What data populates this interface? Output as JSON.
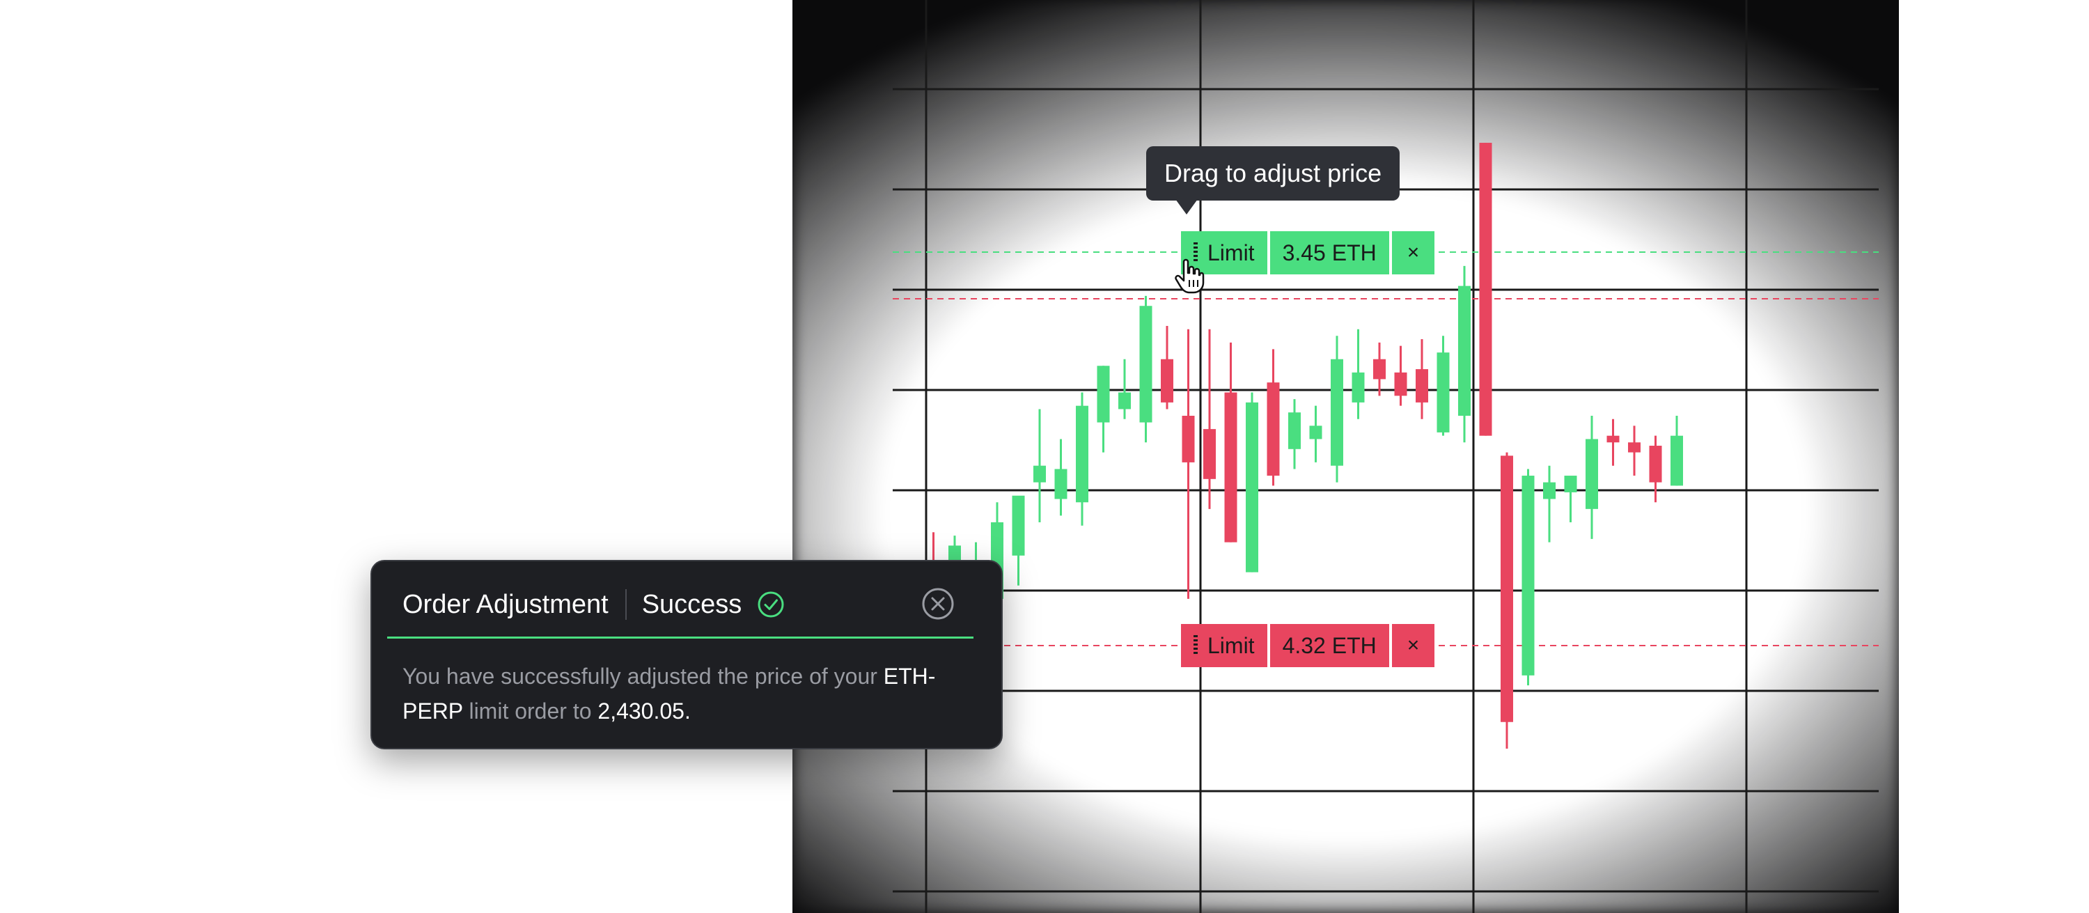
{
  "tooltip": {
    "text": "Drag to adjust price"
  },
  "orders": [
    {
      "type": "Limit",
      "amount": "3.45 ETH",
      "close": "×",
      "side": "buy",
      "color": "#4ade80"
    },
    {
      "type": "Limit",
      "amount": "4.32 ETH",
      "close": "×",
      "side": "sell",
      "color": "#e8455f"
    }
  ],
  "toast": {
    "title": "Order Adjustment",
    "status": "Success",
    "message_prefix": "You have successfully adjusted the price of your",
    "symbol": "ETH-PERP",
    "message_middle": "limit order to",
    "price": "2,430.05."
  },
  "colors": {
    "up": "#4ade80",
    "down": "#e8455f",
    "panel": "#0b0b0c",
    "toast_bg": "#1e1f23"
  },
  "icons": {
    "check": "check-circle-icon",
    "close": "close-circle-icon",
    "cursor": "hand-cursor-icon"
  },
  "chart_data": {
    "type": "candlestick",
    "series": [
      {
        "o": 0.2,
        "h": 0.5,
        "l": 0.08,
        "c": 0.35
      },
      {
        "o": 0.35,
        "h": 0.65,
        "l": 0.1,
        "c": 0.3
      },
      {
        "o": 0.52,
        "h": 0.64,
        "l": 0.44,
        "c": 0.61
      },
      {
        "o": 0.51,
        "h": 0.62,
        "l": 0.44,
        "c": 0.56
      },
      {
        "o": 0.45,
        "h": 0.74,
        "l": 0.4,
        "c": 0.68
      },
      {
        "o": 0.58,
        "h": 0.74,
        "l": 0.49,
        "c": 0.76
      },
      {
        "o": 0.8,
        "h": 1.02,
        "l": 0.68,
        "c": 0.85
      },
      {
        "o": 0.75,
        "h": 0.93,
        "l": 0.7,
        "c": 0.84
      },
      {
        "o": 0.74,
        "h": 1.07,
        "l": 0.67,
        "c": 1.03
      },
      {
        "o": 0.98,
        "h": 1.15,
        "l": 0.89,
        "c": 1.15
      },
      {
        "o": 1.02,
        "h": 1.17,
        "l": 0.99,
        "c": 1.07
      },
      {
        "o": 0.98,
        "h": 1.36,
        "l": 0.92,
        "c": 1.33
      },
      {
        "o": 1.17,
        "h": 1.27,
        "l": 1.02,
        "c": 1.04
      },
      {
        "o": 1.0,
        "h": 1.26,
        "l": 0.45,
        "c": 0.86
      },
      {
        "o": 0.96,
        "h": 1.26,
        "l": 0.72,
        "c": 0.81
      },
      {
        "o": 1.07,
        "h": 1.22,
        "l": 0.62,
        "c": 0.62
      },
      {
        "o": 0.53,
        "h": 1.07,
        "l": 0.53,
        "c": 1.04
      },
      {
        "o": 1.1,
        "h": 1.2,
        "l": 0.79,
        "c": 0.82
      },
      {
        "o": 0.9,
        "h": 1.05,
        "l": 0.84,
        "c": 1.01
      },
      {
        "o": 0.93,
        "h": 1.03,
        "l": 0.86,
        "c": 0.97
      },
      {
        "o": 0.85,
        "h": 1.24,
        "l": 0.8,
        "c": 1.17
      },
      {
        "o": 1.04,
        "h": 1.26,
        "l": 0.99,
        "c": 1.13
      },
      {
        "o": 1.17,
        "h": 1.22,
        "l": 1.06,
        "c": 1.11
      },
      {
        "o": 1.13,
        "h": 1.21,
        "l": 1.03,
        "c": 1.06
      },
      {
        "o": 1.14,
        "h": 1.23,
        "l": 0.99,
        "c": 1.04
      },
      {
        "o": 0.95,
        "h": 1.24,
        "l": 0.94,
        "c": 1.19
      },
      {
        "o": 1.0,
        "h": 1.45,
        "l": 0.92,
        "c": 1.39
      },
      {
        "o": 1.82,
        "h": 1.82,
        "l": 0.94,
        "c": 0.94
      },
      {
        "o": 0.88,
        "h": 0.89,
        "l": 0.0,
        "c": 0.08
      },
      {
        "o": 0.22,
        "h": 0.84,
        "l": 0.19,
        "c": 0.82
      },
      {
        "o": 0.75,
        "h": 0.85,
        "l": 0.62,
        "c": 0.8
      },
      {
        "o": 0.77,
        "h": 0.81,
        "l": 0.68,
        "c": 0.82
      },
      {
        "o": 0.72,
        "h": 1.0,
        "l": 0.63,
        "c": 0.93
      },
      {
        "o": 0.94,
        "h": 0.99,
        "l": 0.85,
        "c": 0.92
      },
      {
        "o": 0.92,
        "h": 0.97,
        "l": 0.82,
        "c": 0.89
      },
      {
        "o": 0.91,
        "h": 0.94,
        "l": 0.74,
        "c": 0.8
      },
      {
        "o": 0.79,
        "h": 1.0,
        "l": 0.79,
        "c": 0.94
      }
    ],
    "grid": true,
    "title": "",
    "xlabel": "",
    "ylabel": ""
  }
}
